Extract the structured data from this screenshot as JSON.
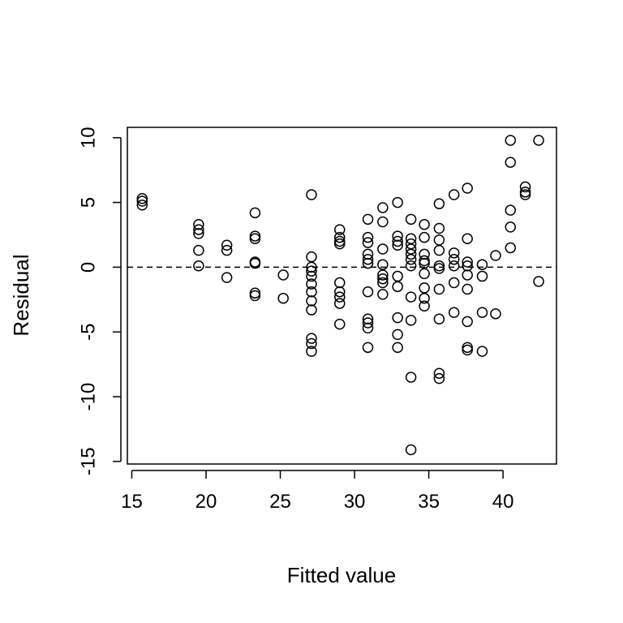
{
  "chart_data": {
    "type": "scatter",
    "title": "",
    "xlabel": "Fitted value",
    "ylabel": "Residual",
    "xlim": [
      14.7,
      43.6
    ],
    "ylim": [
      -15.2,
      10.8
    ],
    "x_ticks": [
      15,
      20,
      25,
      30,
      35,
      40
    ],
    "x_tick_labels": [
      "15",
      "20",
      "25",
      "30",
      "35",
      "40"
    ],
    "y_ticks": [
      -15,
      -10,
      -5,
      0,
      5,
      10
    ],
    "y_tick_labels": [
      "-15",
      "-10",
      "-5",
      "0",
      "5",
      "10"
    ],
    "reference_line": {
      "y": 0,
      "style": "dashed"
    },
    "grid": false,
    "legend": "none",
    "marker": "open-circle",
    "color": "#000000",
    "series": [
      {
        "points": [
          [
            15.7,
            5.3
          ],
          [
            15.7,
            5.1
          ],
          [
            15.7,
            4.8
          ],
          [
            19.5,
            3.3
          ],
          [
            19.5,
            2.9
          ],
          [
            19.5,
            2.6
          ],
          [
            19.5,
            1.3
          ],
          [
            19.5,
            0.1
          ],
          [
            21.4,
            1.7
          ],
          [
            21.4,
            1.3
          ],
          [
            21.4,
            -0.8
          ],
          [
            23.3,
            4.2
          ],
          [
            23.3,
            2.4
          ],
          [
            23.3,
            2.2
          ],
          [
            23.3,
            0.4
          ],
          [
            23.3,
            0.3
          ],
          [
            23.3,
            -2.0
          ],
          [
            23.3,
            -2.2
          ],
          [
            25.2,
            -0.6
          ],
          [
            25.2,
            -2.4
          ],
          [
            27.1,
            5.6
          ],
          [
            27.1,
            0.8
          ],
          [
            27.1,
            0.0
          ],
          [
            27.1,
            -0.3
          ],
          [
            27.1,
            -0.7
          ],
          [
            27.1,
            -1.3
          ],
          [
            27.1,
            -1.9
          ],
          [
            27.1,
            -2.6
          ],
          [
            27.1,
            -3.3
          ],
          [
            27.1,
            -5.5
          ],
          [
            27.1,
            -5.9
          ],
          [
            27.1,
            -6.5
          ],
          [
            29.0,
            2.9
          ],
          [
            29.0,
            2.3
          ],
          [
            29.0,
            2.0
          ],
          [
            29.0,
            1.8
          ],
          [
            29.0,
            -1.2
          ],
          [
            29.0,
            -1.9
          ],
          [
            29.0,
            -2.3
          ],
          [
            29.0,
            -2.8
          ],
          [
            29.0,
            -4.4
          ],
          [
            30.9,
            3.7
          ],
          [
            30.9,
            2.3
          ],
          [
            30.9,
            1.9
          ],
          [
            30.9,
            1.0
          ],
          [
            30.9,
            0.6
          ],
          [
            30.9,
            0.3
          ],
          [
            30.9,
            -1.9
          ],
          [
            30.9,
            -4.0
          ],
          [
            30.9,
            -4.3
          ],
          [
            30.9,
            -4.7
          ],
          [
            30.9,
            -6.2
          ],
          [
            31.9,
            4.6
          ],
          [
            31.9,
            3.5
          ],
          [
            31.9,
            1.4
          ],
          [
            31.9,
            0.2
          ],
          [
            31.9,
            -0.6
          ],
          [
            31.9,
            -0.9
          ],
          [
            31.9,
            -1.2
          ],
          [
            31.9,
            -2.1
          ],
          [
            32.9,
            5.0
          ],
          [
            32.9,
            2.4
          ],
          [
            32.9,
            2.0
          ],
          [
            32.9,
            1.7
          ],
          [
            32.9,
            -0.7
          ],
          [
            32.9,
            -1.5
          ],
          [
            32.9,
            -3.9
          ],
          [
            32.9,
            -5.2
          ],
          [
            32.9,
            -6.2
          ],
          [
            33.8,
            3.7
          ],
          [
            33.8,
            2.2
          ],
          [
            33.8,
            1.8
          ],
          [
            33.8,
            1.4
          ],
          [
            33.8,
            1.0
          ],
          [
            33.8,
            0.6
          ],
          [
            33.8,
            0.1
          ],
          [
            33.8,
            -2.3
          ],
          [
            33.8,
            -4.1
          ],
          [
            33.8,
            -8.5
          ],
          [
            33.8,
            -14.1
          ],
          [
            34.7,
            3.3
          ],
          [
            34.7,
            2.3
          ],
          [
            34.7,
            1.0
          ],
          [
            34.7,
            0.5
          ],
          [
            34.7,
            0.3
          ],
          [
            34.7,
            -0.5
          ],
          [
            34.7,
            -1.6
          ],
          [
            34.7,
            -2.4
          ],
          [
            34.7,
            -3.0
          ],
          [
            35.7,
            4.9
          ],
          [
            35.7,
            3.0
          ],
          [
            35.7,
            2.1
          ],
          [
            35.7,
            1.3
          ],
          [
            35.7,
            0.1
          ],
          [
            35.7,
            -0.1
          ],
          [
            35.7,
            -1.7
          ],
          [
            35.7,
            -4.0
          ],
          [
            35.7,
            -8.2
          ],
          [
            35.7,
            -8.6
          ],
          [
            36.7,
            5.6
          ],
          [
            36.7,
            1.1
          ],
          [
            36.7,
            0.6
          ],
          [
            36.7,
            0.1
          ],
          [
            36.7,
            -1.2
          ],
          [
            36.7,
            -3.5
          ],
          [
            37.6,
            6.1
          ],
          [
            37.6,
            2.2
          ],
          [
            37.6,
            0.4
          ],
          [
            37.6,
            0.1
          ],
          [
            37.6,
            -0.6
          ],
          [
            37.6,
            -1.7
          ],
          [
            37.6,
            -4.2
          ],
          [
            37.6,
            -6.2
          ],
          [
            37.6,
            -6.4
          ],
          [
            38.6,
            0.2
          ],
          [
            38.6,
            -0.7
          ],
          [
            38.6,
            -3.5
          ],
          [
            38.6,
            -6.5
          ],
          [
            39.5,
            0.9
          ],
          [
            39.5,
            -3.6
          ],
          [
            40.5,
            9.8
          ],
          [
            40.5,
            8.1
          ],
          [
            40.5,
            4.4
          ],
          [
            40.5,
            3.1
          ],
          [
            40.5,
            1.5
          ],
          [
            41.5,
            6.2
          ],
          [
            41.5,
            5.8
          ],
          [
            41.5,
            5.6
          ],
          [
            42.4,
            9.8
          ],
          [
            42.4,
            -1.1
          ]
        ]
      }
    ]
  }
}
